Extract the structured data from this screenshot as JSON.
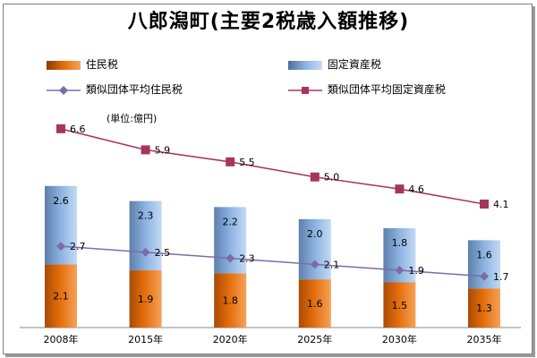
{
  "chart_data": {
    "type": "bar",
    "title": "八郎潟町(主要2税歳入額推移)",
    "unit_label": "(単位:億円)",
    "categories": [
      "2008年",
      "2015年",
      "2020年",
      "2025年",
      "2030年",
      "2035年"
    ],
    "stacked_bars": [
      {
        "name": "住民税",
        "values": [
          2.1,
          1.9,
          1.8,
          1.6,
          1.5,
          1.3
        ],
        "color": "#e36c0a"
      },
      {
        "name": "固定資産税",
        "values": [
          2.6,
          2.3,
          2.2,
          2.0,
          1.8,
          1.6
        ],
        "color": "#8db3e2"
      }
    ],
    "lines": [
      {
        "name": "類似団体平均住民税",
        "values": [
          2.7,
          2.5,
          2.3,
          2.1,
          1.9,
          1.7
        ],
        "color": "#7e6ba6"
      },
      {
        "name": "類似団体平均固定資産税",
        "values": [
          6.6,
          5.9,
          5.5,
          5.0,
          4.6,
          4.1
        ],
        "color": "#a5355f"
      }
    ],
    "ylim": [
      0,
      8.2
    ],
    "legend_position": "top",
    "grid": false
  }
}
